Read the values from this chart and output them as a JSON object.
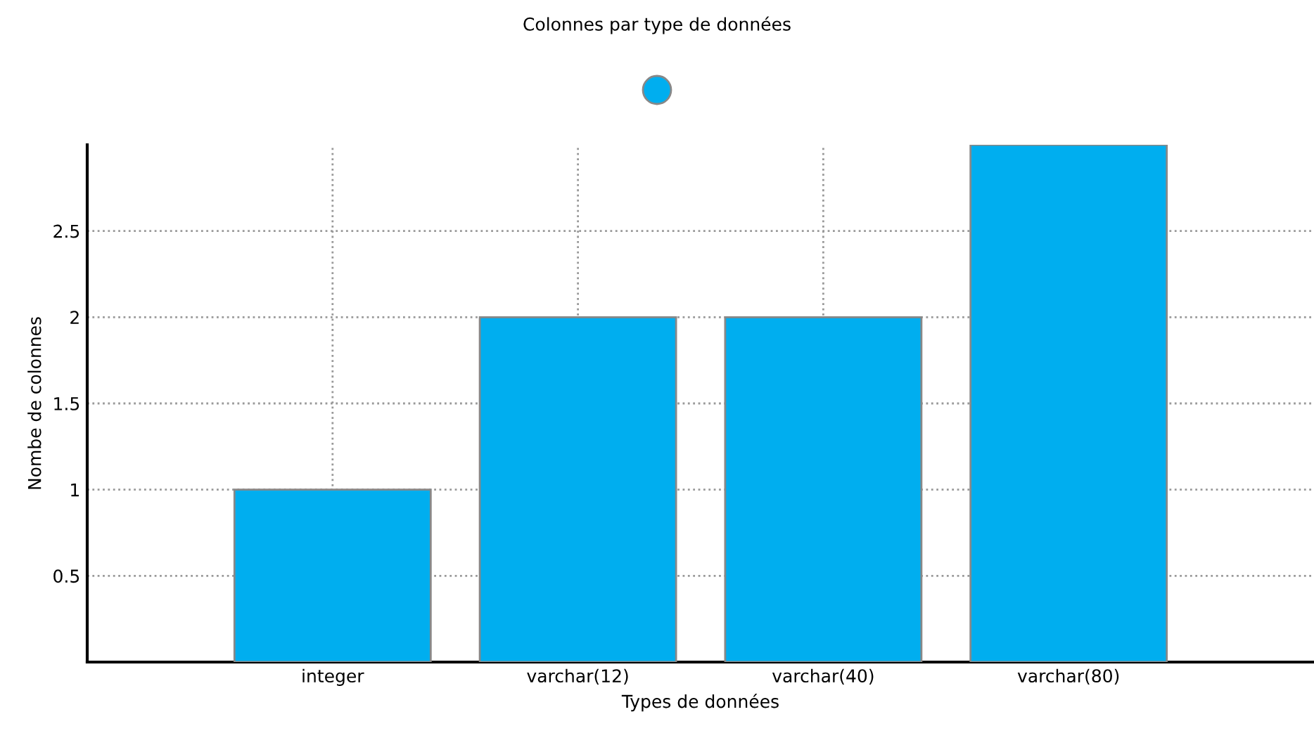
{
  "chart_data": {
    "type": "bar",
    "title": "Colonnes par type de données",
    "xlabel": "Types de données",
    "ylabel": "Nombe de colonnes",
    "categories": [
      "integer",
      "varchar(12)",
      "varchar(40)",
      "varchar(80)"
    ],
    "series": [
      {
        "color": "#00aeef",
        "values": [
          1,
          2,
          2,
          3
        ]
      }
    ],
    "ylim": [
      0,
      3
    ],
    "yticks": [
      0.5,
      1,
      1.5,
      2,
      2.5
    ],
    "grid": true
  }
}
